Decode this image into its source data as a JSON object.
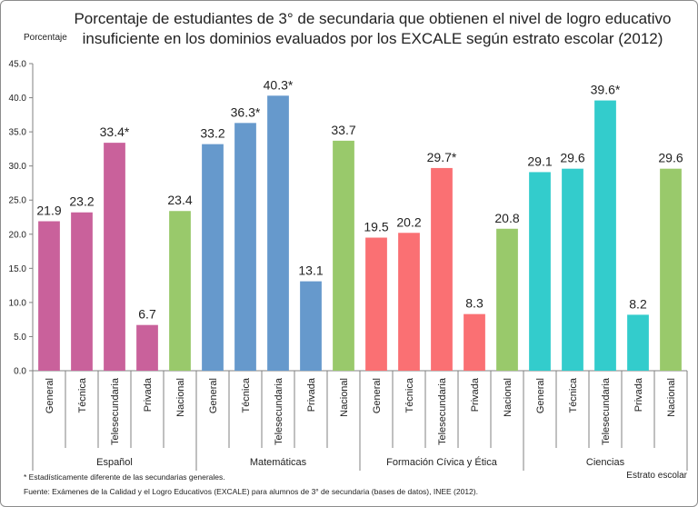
{
  "chart_data": {
    "type": "bar",
    "title": "Porcentaje de estudiantes de 3° de secundaria que obtienen el nivel de logro educativo insuficiente en los dominios evaluados por los EXCALE según estrato escolar (2012)",
    "ylabel": "Porcentaje",
    "xlabel": "Estrato escolar",
    "ylim": [
      0,
      45
    ],
    "yticks": [
      "0.0",
      "5.0",
      "10.0",
      "15.0",
      "20.0",
      "25.0",
      "30.0",
      "35.0",
      "40.0",
      "45.0"
    ],
    "grid": false,
    "groups": [
      {
        "name": "Español",
        "bars": [
          {
            "category": "General",
            "value": 21.9,
            "label": "21.9",
            "color": "#c9619b"
          },
          {
            "category": "Técnica",
            "value": 23.2,
            "label": "23.2",
            "color": "#c9619b"
          },
          {
            "category": "Telesecundaria",
            "value": 33.4,
            "label": "33.4*",
            "color": "#c9619b"
          },
          {
            "category": "Privada",
            "value": 6.7,
            "label": "6.7",
            "color": "#c9619b"
          },
          {
            "category": "Nacional",
            "value": 23.4,
            "label": "23.4",
            "color": "#99c96b"
          }
        ]
      },
      {
        "name": "Matemáticas",
        "bars": [
          {
            "category": "General",
            "value": 33.2,
            "label": "33.2",
            "color": "#6699cc"
          },
          {
            "category": "Técnica",
            "value": 36.3,
            "label": "36.3*",
            "color": "#6699cc"
          },
          {
            "category": "Telesecundaria",
            "value": 40.3,
            "label": "40.3*",
            "color": "#6699cc"
          },
          {
            "category": "Privada",
            "value": 13.1,
            "label": "13.1",
            "color": "#6699cc"
          },
          {
            "category": "Nacional",
            "value": 33.7,
            "label": "33.7",
            "color": "#99c96b"
          }
        ]
      },
      {
        "name": "Formación Cívica y Ética",
        "bars": [
          {
            "category": "General",
            "value": 19.5,
            "label": "19.5",
            "color": "#fa7073"
          },
          {
            "category": "Técnica",
            "value": 20.2,
            "label": "20.2",
            "color": "#fa7073"
          },
          {
            "category": "Telesecundaria",
            "value": 29.7,
            "label": "29.7*",
            "color": "#fa7073"
          },
          {
            "category": "Privada",
            "value": 8.3,
            "label": "8.3",
            "color": "#fa7073"
          },
          {
            "category": "Nacional",
            "value": 20.8,
            "label": "20.8",
            "color": "#99c96b"
          }
        ]
      },
      {
        "name": "Ciencias",
        "bars": [
          {
            "category": "General",
            "value": 29.1,
            "label": "29.1",
            "color": "#33cccc"
          },
          {
            "category": "Técnica",
            "value": 29.6,
            "label": "29.6",
            "color": "#33cccc"
          },
          {
            "category": "Telesecundaria",
            "value": 39.6,
            "label": "39.6*",
            "color": "#33cccc"
          },
          {
            "category": "Privada",
            "value": 8.2,
            "label": "8.2",
            "color": "#33cccc"
          },
          {
            "category": "Nacional",
            "value": 29.6,
            "label": "29.6",
            "color": "#99c96b"
          }
        ]
      }
    ]
  },
  "footnotes": {
    "note": "* Estadísticamente diferente de las secundarias generales.",
    "source": "Fuente: Exámenes de la Calidad y el Logro Educativos (EXCALE) para alumnos de 3° de secundaria (bases de datos), INEE (2012)."
  }
}
